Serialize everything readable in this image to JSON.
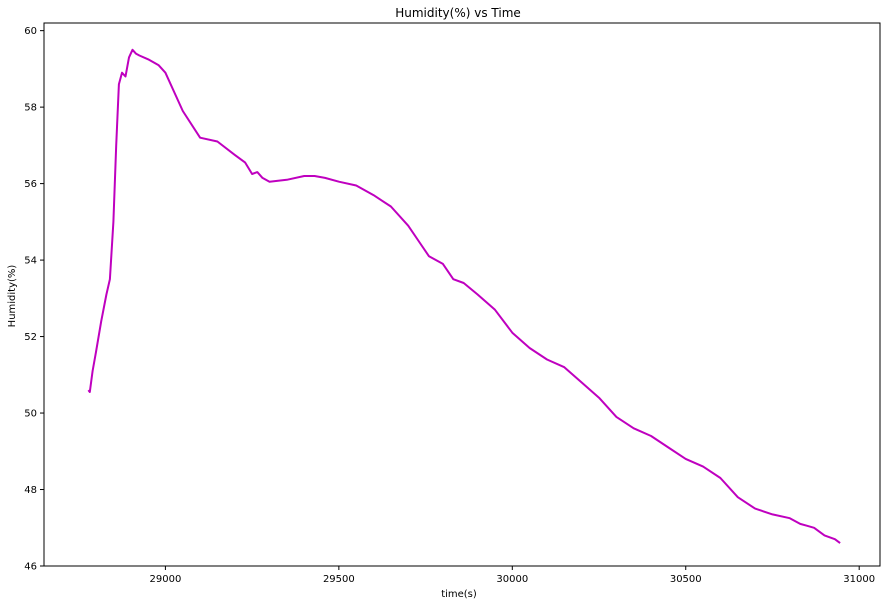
{
  "chart_data": {
    "type": "line",
    "title": "Humidity(%) vs Time",
    "xlabel": "time(s)",
    "ylabel": "Humidity(%)",
    "xlim": [
      28650,
      31060
    ],
    "ylim": [
      46,
      60.2
    ],
    "xticks": [
      29000,
      29500,
      30000,
      30500,
      31000
    ],
    "yticks": [
      46,
      48,
      50,
      52,
      54,
      56,
      58,
      60
    ],
    "grid": false,
    "series": [
      {
        "color": "#bf00bf",
        "x": [
          28778,
          28782,
          28790,
          28800,
          28815,
          28830,
          28840,
          28850,
          28858,
          28866,
          28875,
          28885,
          28895,
          28905,
          28915,
          28925,
          28950,
          28980,
          29000,
          29050,
          29100,
          29150,
          29200,
          29230,
          29250,
          29265,
          29280,
          29300,
          29350,
          29400,
          29430,
          29460,
          29500,
          29550,
          29600,
          29650,
          29700,
          29730,
          29760,
          29800,
          29830,
          29860,
          29900,
          29950,
          30000,
          30050,
          30100,
          30150,
          30200,
          30250,
          30300,
          30350,
          30400,
          30450,
          30500,
          30550,
          30600,
          30650,
          30700,
          30750,
          30800,
          30830,
          30850,
          30870,
          30900,
          30930,
          30945
        ],
        "y": [
          50.6,
          50.55,
          51.1,
          51.6,
          52.4,
          53.1,
          53.5,
          55.0,
          57.0,
          58.6,
          58.9,
          58.8,
          59.3,
          59.5,
          59.4,
          59.35,
          59.25,
          59.1,
          58.9,
          57.9,
          57.2,
          57.1,
          56.75,
          56.55,
          56.25,
          56.3,
          56.15,
          56.05,
          56.1,
          56.2,
          56.2,
          56.15,
          56.05,
          55.95,
          55.7,
          55.4,
          54.9,
          54.5,
          54.1,
          53.9,
          53.5,
          53.4,
          53.1,
          52.7,
          52.1,
          51.7,
          51.4,
          51.2,
          50.8,
          50.4,
          49.9,
          49.6,
          49.4,
          49.1,
          48.8,
          48.6,
          48.3,
          47.8,
          47.5,
          47.35,
          47.25,
          47.1,
          47.05,
          47.0,
          46.8,
          46.7,
          46.6
        ]
      }
    ]
  }
}
